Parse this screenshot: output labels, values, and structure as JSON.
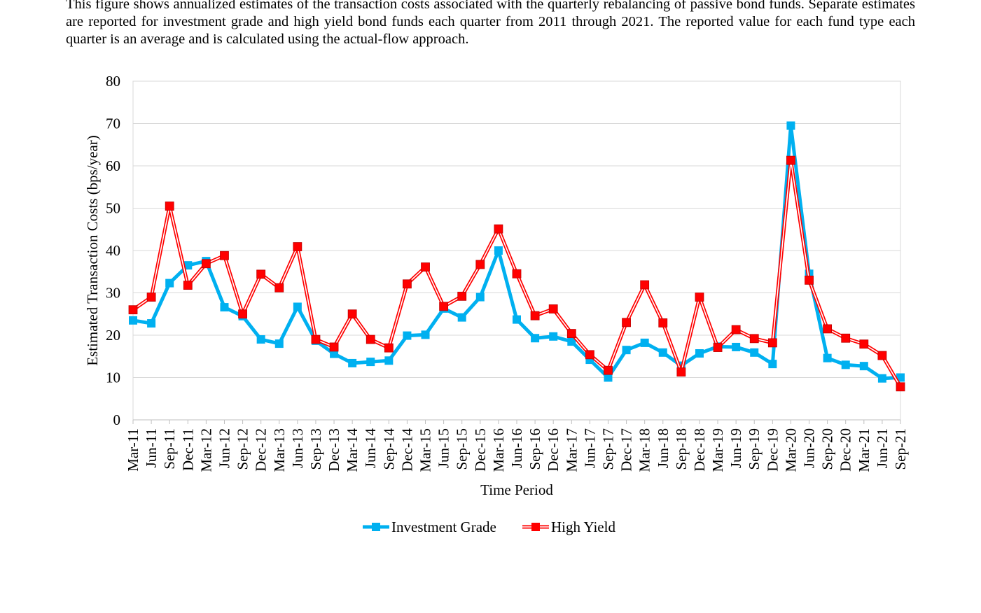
{
  "caption": "This figure shows annualized estimates of the transaction costs associated with the quarterly rebalancing of passive bond funds. Separate estimates are reported for investment grade and high yield bond funds each quarter from 2011 through 2021. The reported value for each fund type each quarter is an average and is calculated using the actual-flow approach.",
  "chart_data": {
    "type": "line",
    "title": "",
    "xlabel": "Time Period",
    "ylabel": "Estimated Transaction Costs (bps/year)",
    "ylim": [
      0,
      80
    ],
    "yticks": [
      0,
      10,
      20,
      30,
      40,
      50,
      60,
      70,
      80
    ],
    "grid": true,
    "legend": "bottom-center",
    "categories": [
      "Mar-11",
      "Jun-11",
      "Sep-11",
      "Dec-11",
      "Mar-12",
      "Jun-12",
      "Sep-12",
      "Dec-12",
      "Mar-13",
      "Jun-13",
      "Sep-13",
      "Dec-13",
      "Mar-14",
      "Jun-14",
      "Sep-14",
      "Dec-14",
      "Mar-15",
      "Jun-15",
      "Sep-15",
      "Dec-15",
      "Mar-16",
      "Jun-16",
      "Sep-16",
      "Dec-16",
      "Mar-17",
      "Jun-17",
      "Sep-17",
      "Dec-17",
      "Mar-18",
      "Jun-18",
      "Sep-18",
      "Dec-18",
      "Mar-19",
      "Jun-19",
      "Sep-19",
      "Dec-19",
      "Mar-20",
      "Jun-20",
      "Sep-20",
      "Dec-20",
      "Mar-21",
      "Jun-21",
      "Sep-21"
    ],
    "series": [
      {
        "name": "Investment Grade",
        "color": "#00B0F0",
        "values": [
          23.5,
          22.8,
          32.3,
          36.5,
          37.5,
          26.6,
          24.5,
          19.0,
          18.0,
          26.7,
          18.7,
          15.6,
          13.4,
          13.7,
          14.0,
          19.9,
          20.1,
          26.3,
          24.2,
          29.0,
          40.0,
          23.7,
          19.3,
          19.7,
          18.5,
          14.2,
          10.0,
          16.5,
          18.2,
          15.9,
          12.8,
          15.7,
          17.3,
          17.2,
          15.9,
          13.2,
          69.5,
          34.5,
          14.6,
          13.0,
          12.7,
          9.8,
          10.0
        ]
      },
      {
        "name": "High Yield",
        "color": "#FF0000",
        "values": [
          26.0,
          29.0,
          50.5,
          31.8,
          36.9,
          38.8,
          25.0,
          34.4,
          31.2,
          40.9,
          19.0,
          17.2,
          25.0,
          19.0,
          17.0,
          32.1,
          36.1,
          26.8,
          29.2,
          36.7,
          45.1,
          34.5,
          24.6,
          26.2,
          20.4,
          15.4,
          11.7,
          23.0,
          31.9,
          22.9,
          11.3,
          29.0,
          17.1,
          21.3,
          19.2,
          18.2,
          61.3,
          33.0,
          21.5,
          19.3,
          17.9,
          15.2,
          7.8
        ]
      }
    ]
  }
}
